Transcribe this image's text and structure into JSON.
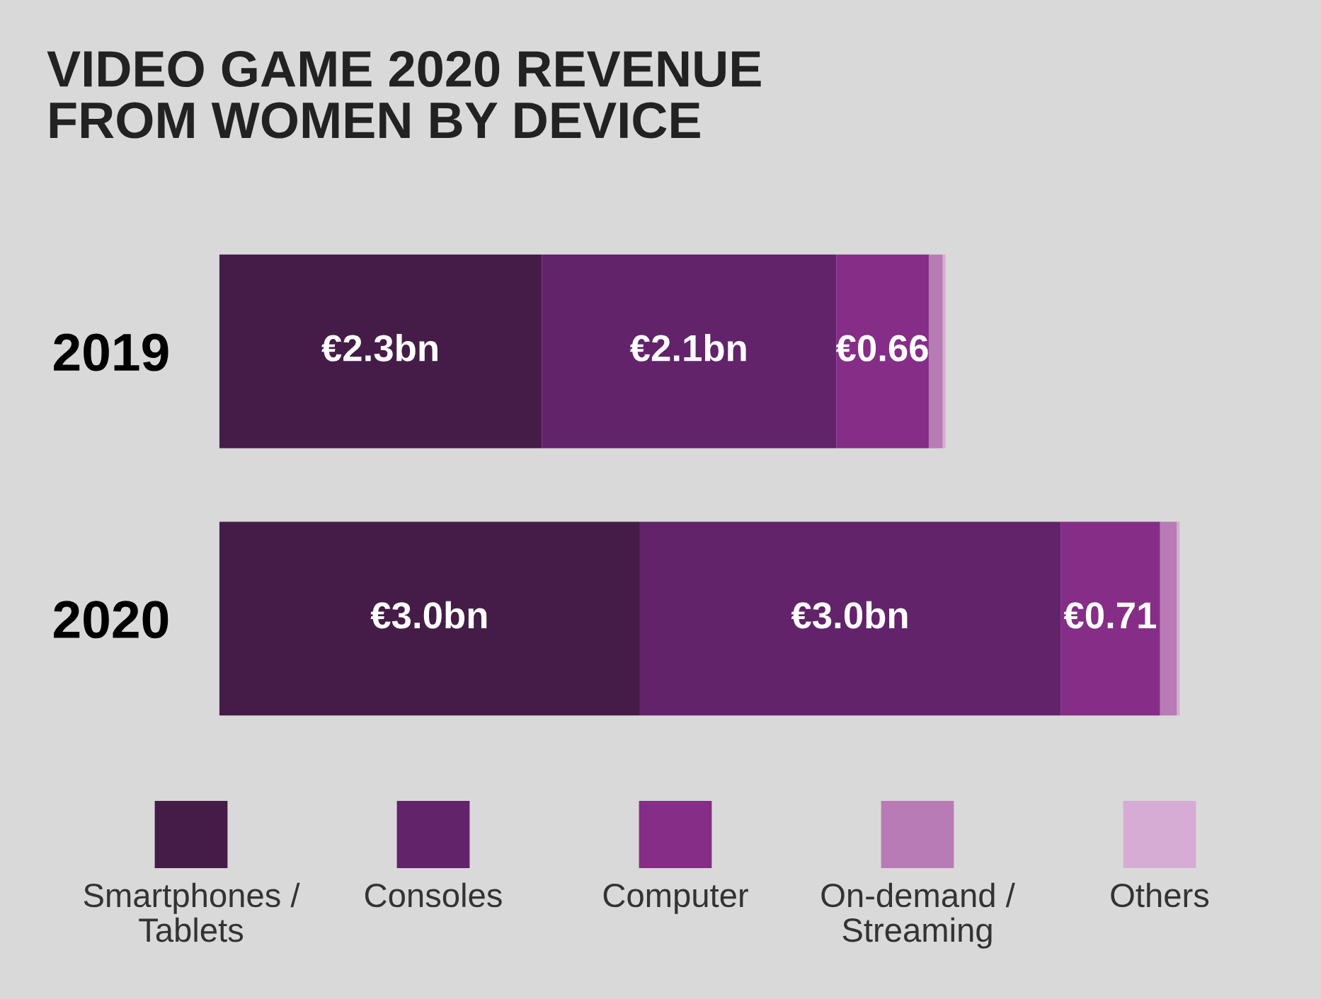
{
  "chart_data": {
    "type": "bar",
    "orientation": "horizontal",
    "stacked": true,
    "title": "VIDEO GAME 2020 REVENUE\nFROM WOMEN BY DEVICE",
    "categories": [
      "2019",
      "2020"
    ],
    "xlim": [
      0,
      7.0
    ],
    "tick_labels": "y",
    "grid": false,
    "legend": "bottom",
    "series": [
      {
        "name": "Smartphones /\nTablets",
        "color": "#451c47",
        "values": [
          2.3,
          3.0
        ],
        "value_labels": [
          "€2.3bn",
          "€3.0bn"
        ]
      },
      {
        "name": "Consoles",
        "color": "#62236b",
        "values": [
          2.1,
          3.0
        ],
        "value_labels": [
          "€2.1bn",
          "€3.0bn"
        ]
      },
      {
        "name": "Computer",
        "color": "#852d87",
        "values": [
          0.66,
          0.71
        ],
        "value_labels": [
          "€0.66",
          "€0.71"
        ]
      },
      {
        "name": "On-demand /\nStreaming",
        "color": "#b87bb6",
        "values": [
          0.1,
          0.12
        ]
      },
      {
        "name": "Others",
        "color": "#d7acd4",
        "values": [
          0.02,
          0.02
        ]
      }
    ]
  }
}
